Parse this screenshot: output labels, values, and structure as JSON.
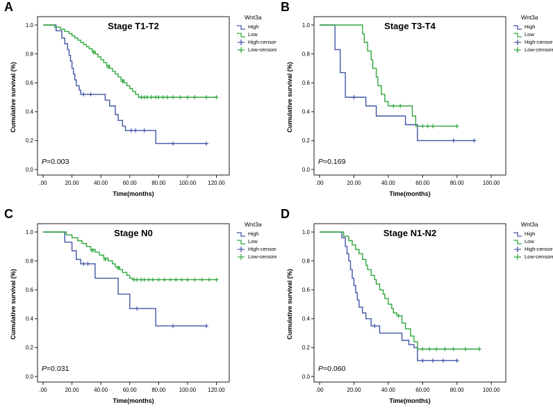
{
  "figure": {
    "colors": {
      "high": "#3E55A6",
      "low": "#2FA63A",
      "axis": "#1a1a1a",
      "background": "#ffffff"
    },
    "legend": {
      "title": "Wnt3a",
      "items": [
        {
          "key": "high",
          "label": "High",
          "color": "high",
          "glyph": "step"
        },
        {
          "key": "low",
          "label": "Low",
          "color": "low",
          "glyph": "step"
        },
        {
          "key": "high-censored",
          "label": "High-censored",
          "color": "high",
          "glyph": "plus"
        },
        {
          "key": "low-censored",
          "label": "Low-censored",
          "color": "low",
          "glyph": "plus"
        }
      ]
    }
  },
  "chart_data": [
    {
      "panel_label": "A",
      "type": "line",
      "title": "Stage T1-T2",
      "xlabel": "Time(months)",
      "ylabel": "Cumulative survival (%)",
      "p_label": "P",
      "p_text": "=0.003",
      "xlim": [
        0,
        126
      ],
      "ylim": [
        0,
        1.0
      ],
      "xticks": [
        0,
        20,
        40,
        60,
        80,
        100,
        120
      ],
      "xtick_labels": [
        ".00",
        "20.00",
        "40.00",
        "60.00",
        "80.00",
        "100.00",
        "120.00"
      ],
      "yticks": [
        0.0,
        0.2,
        0.4,
        0.6,
        0.8,
        1.0
      ],
      "ytick_labels": [
        "0.0",
        "0.2",
        "0.4",
        "0.6",
        "0.8",
        "1.0"
      ],
      "series": [
        {
          "name": "High",
          "color": "high",
          "steps": [
            [
              0,
              1.0
            ],
            [
              9,
              0.96
            ],
            [
              13,
              0.91
            ],
            [
              15,
              0.87
            ],
            [
              17,
              0.83
            ],
            [
              18,
              0.79
            ],
            [
              19,
              0.75
            ],
            [
              20,
              0.7
            ],
            [
              21,
              0.66
            ],
            [
              22,
              0.62
            ],
            [
              23,
              0.58
            ],
            [
              25,
              0.55
            ],
            [
              26,
              0.52
            ],
            [
              43,
              0.48
            ],
            [
              46,
              0.44
            ],
            [
              50,
              0.38
            ],
            [
              52,
              0.34
            ],
            [
              55,
              0.3
            ],
            [
              57,
              0.27
            ],
            [
              78,
              0.18
            ],
            [
              113,
              0.18
            ]
          ],
          "censors": [
            [
              28,
              0.52
            ],
            [
              33,
              0.52
            ],
            [
              61,
              0.27
            ],
            [
              64,
              0.27
            ],
            [
              70,
              0.27
            ],
            [
              90,
              0.18
            ],
            [
              113,
              0.18
            ]
          ]
        },
        {
          "name": "Low",
          "color": "low",
          "steps": [
            [
              0,
              1.0
            ],
            [
              8,
              0.985
            ],
            [
              12,
              0.97
            ],
            [
              15,
              0.955
            ],
            [
              18,
              0.94
            ],
            [
              20,
              0.925
            ],
            [
              22,
              0.91
            ],
            [
              24,
              0.895
            ],
            [
              26,
              0.88
            ],
            [
              28,
              0.865
            ],
            [
              30,
              0.85
            ],
            [
              32,
              0.835
            ],
            [
              34,
              0.82
            ],
            [
              36,
              0.8
            ],
            [
              38,
              0.78
            ],
            [
              40,
              0.76
            ],
            [
              42,
              0.74
            ],
            [
              44,
              0.72
            ],
            [
              46,
              0.7
            ],
            [
              48,
              0.68
            ],
            [
              50,
              0.66
            ],
            [
              52,
              0.64
            ],
            [
              54,
              0.62
            ],
            [
              56,
              0.6
            ],
            [
              58,
              0.58
            ],
            [
              60,
              0.56
            ],
            [
              62,
              0.54
            ],
            [
              64,
              0.52
            ],
            [
              66,
              0.5
            ],
            [
              120,
              0.5
            ]
          ],
          "censors": [
            [
              35,
              0.81
            ],
            [
              45,
              0.71
            ],
            [
              55,
              0.61
            ],
            [
              68,
              0.5
            ],
            [
              70,
              0.5
            ],
            [
              72,
              0.5
            ],
            [
              75,
              0.5
            ],
            [
              78,
              0.5
            ],
            [
              80,
              0.5
            ],
            [
              83,
              0.5
            ],
            [
              86,
              0.5
            ],
            [
              90,
              0.5
            ],
            [
              95,
              0.5
            ],
            [
              100,
              0.5
            ],
            [
              105,
              0.5
            ],
            [
              113,
              0.5
            ],
            [
              120,
              0.5
            ]
          ]
        }
      ]
    },
    {
      "panel_label": "B",
      "type": "line",
      "title": "Stage T3-T4",
      "xlabel": "Time(months)",
      "ylabel": "Cumulative survival (%)",
      "p_label": "P",
      "p_text": "=0.169",
      "xlim": [
        0,
        106
      ],
      "ylim": [
        0,
        1.0
      ],
      "xticks": [
        0,
        20,
        40,
        60,
        80,
        100
      ],
      "xtick_labels": [
        ".00",
        "20.00",
        "40.00",
        "60.00",
        "80.00",
        "100.00"
      ],
      "yticks": [
        0.0,
        0.2,
        0.4,
        0.6,
        0.8,
        1.0
      ],
      "ytick_labels": [
        "0.0",
        "0.2",
        "0.4",
        "0.6",
        "0.8",
        "1.0"
      ],
      "series": [
        {
          "name": "High",
          "color": "high",
          "steps": [
            [
              0,
              1.0
            ],
            [
              9,
              0.83
            ],
            [
              12,
              0.67
            ],
            [
              15,
              0.5
            ],
            [
              27,
              0.44
            ],
            [
              33,
              0.37
            ],
            [
              50,
              0.31
            ],
            [
              57,
              0.2
            ],
            [
              90,
              0.2
            ]
          ],
          "censors": [
            [
              20,
              0.5
            ],
            [
              78,
              0.2
            ],
            [
              90,
              0.2
            ]
          ]
        },
        {
          "name": "Low",
          "color": "low",
          "steps": [
            [
              0,
              1.0
            ],
            [
              25,
              0.94
            ],
            [
              26,
              0.88
            ],
            [
              28,
              0.82
            ],
            [
              30,
              0.76
            ],
            [
              31,
              0.7
            ],
            [
              33,
              0.64
            ],
            [
              34,
              0.58
            ],
            [
              36,
              0.52
            ],
            [
              38,
              0.47
            ],
            [
              40,
              0.44
            ],
            [
              54,
              0.37
            ],
            [
              56,
              0.3
            ],
            [
              80,
              0.3
            ]
          ],
          "censors": [
            [
              43,
              0.44
            ],
            [
              47,
              0.44
            ],
            [
              60,
              0.3
            ],
            [
              63,
              0.3
            ],
            [
              66,
              0.3
            ],
            [
              80,
              0.3
            ]
          ]
        }
      ]
    },
    {
      "panel_label": "C",
      "type": "line",
      "title": "Stage N0",
      "xlabel": "Time(months)",
      "ylabel": "Cumulative survival (%)",
      "p_label": "P",
      "p_text": "=0.031",
      "xlim": [
        0,
        126
      ],
      "ylim": [
        0,
        1.0
      ],
      "xticks": [
        0,
        20,
        40,
        60,
        80,
        100,
        120
      ],
      "xtick_labels": [
        ".00",
        "20.00",
        "40.00",
        "60.00",
        "80.00",
        "100.00",
        "120.00"
      ],
      "yticks": [
        0.0,
        0.2,
        0.4,
        0.6,
        0.8,
        1.0
      ],
      "ytick_labels": [
        "0.0",
        "0.2",
        "0.4",
        "0.6",
        "0.8",
        "1.0"
      ],
      "series": [
        {
          "name": "High",
          "color": "high",
          "steps": [
            [
              0,
              1.0
            ],
            [
              15,
              0.93
            ],
            [
              20,
              0.87
            ],
            [
              23,
              0.81
            ],
            [
              26,
              0.78
            ],
            [
              36,
              0.68
            ],
            [
              52,
              0.57
            ],
            [
              60,
              0.47
            ],
            [
              78,
              0.35
            ],
            [
              113,
              0.35
            ]
          ],
          "censors": [
            [
              28,
              0.78
            ],
            [
              31,
              0.78
            ],
            [
              65,
              0.47
            ],
            [
              90,
              0.35
            ],
            [
              113,
              0.35
            ]
          ]
        },
        {
          "name": "Low",
          "color": "low",
          "steps": [
            [
              0,
              1.0
            ],
            [
              16,
              0.98
            ],
            [
              20,
              0.96
            ],
            [
              24,
              0.94
            ],
            [
              27,
              0.92
            ],
            [
              30,
              0.9
            ],
            [
              33,
              0.88
            ],
            [
              36,
              0.86
            ],
            [
              39,
              0.84
            ],
            [
              42,
              0.82
            ],
            [
              45,
              0.8
            ],
            [
              48,
              0.78
            ],
            [
              50,
              0.76
            ],
            [
              53,
              0.74
            ],
            [
              55,
              0.72
            ],
            [
              58,
              0.7
            ],
            [
              60,
              0.68
            ],
            [
              62,
              0.67
            ],
            [
              120,
              0.67
            ]
          ],
          "censors": [
            [
              34,
              0.87
            ],
            [
              43,
              0.81
            ],
            [
              52,
              0.75
            ],
            [
              63,
              0.67
            ],
            [
              65,
              0.67
            ],
            [
              68,
              0.67
            ],
            [
              70,
              0.67
            ],
            [
              73,
              0.67
            ],
            [
              76,
              0.67
            ],
            [
              80,
              0.67
            ],
            [
              84,
              0.67
            ],
            [
              88,
              0.67
            ],
            [
              92,
              0.67
            ],
            [
              96,
              0.67
            ],
            [
              100,
              0.67
            ],
            [
              105,
              0.67
            ],
            [
              110,
              0.67
            ],
            [
              115,
              0.67
            ],
            [
              120,
              0.67
            ]
          ]
        }
      ]
    },
    {
      "panel_label": "D",
      "type": "line",
      "title": "Stage N1-N2",
      "xlabel": "Time(months)",
      "ylabel": "Cumulative survival (%)",
      "p_label": "P",
      "p_text": "=0.060",
      "xlim": [
        0,
        106
      ],
      "ylim": [
        0,
        1.0
      ],
      "xticks": [
        0,
        20,
        40,
        60,
        80,
        100
      ],
      "xtick_labels": [
        ".00",
        "20.00",
        "40.00",
        "60.00",
        "80.00",
        "100.00"
      ],
      "yticks": [
        0.0,
        0.2,
        0.4,
        0.6,
        0.8,
        1.0
      ],
      "ytick_labels": [
        "0.0",
        "0.2",
        "0.4",
        "0.6",
        "0.8",
        "1.0"
      ],
      "series": [
        {
          "name": "High",
          "color": "high",
          "steps": [
            [
              0,
              1.0
            ],
            [
              13,
              0.96
            ],
            [
              15,
              0.9
            ],
            [
              16,
              0.85
            ],
            [
              17,
              0.8
            ],
            [
              18,
              0.74
            ],
            [
              19,
              0.68
            ],
            [
              20,
              0.63
            ],
            [
              21,
              0.58
            ],
            [
              22,
              0.53
            ],
            [
              23,
              0.48
            ],
            [
              25,
              0.44
            ],
            [
              27,
              0.4
            ],
            [
              30,
              0.35
            ],
            [
              35,
              0.3
            ],
            [
              48,
              0.25
            ],
            [
              52,
              0.22
            ],
            [
              55,
              0.2
            ],
            [
              57,
              0.11
            ],
            [
              80,
              0.11
            ]
          ],
          "censors": [
            [
              32,
              0.35
            ],
            [
              60,
              0.11
            ],
            [
              66,
              0.11
            ],
            [
              72,
              0.11
            ],
            [
              80,
              0.11
            ]
          ]
        },
        {
          "name": "Low",
          "color": "low",
          "steps": [
            [
              0,
              1.0
            ],
            [
              14,
              0.97
            ],
            [
              17,
              0.94
            ],
            [
              19,
              0.91
            ],
            [
              21,
              0.88
            ],
            [
              23,
              0.85
            ],
            [
              25,
              0.81
            ],
            [
              27,
              0.77
            ],
            [
              28,
              0.74
            ],
            [
              30,
              0.7
            ],
            [
              32,
              0.67
            ],
            [
              33,
              0.64
            ],
            [
              35,
              0.6
            ],
            [
              37,
              0.57
            ],
            [
              38,
              0.54
            ],
            [
              40,
              0.5
            ],
            [
              42,
              0.47
            ],
            [
              43,
              0.44
            ],
            [
              45,
              0.42
            ],
            [
              48,
              0.37
            ],
            [
              50,
              0.33
            ],
            [
              53,
              0.28
            ],
            [
              55,
              0.24
            ],
            [
              57,
              0.19
            ],
            [
              93,
              0.19
            ]
          ],
          "censors": [
            [
              46,
              0.42
            ],
            [
              60,
              0.19
            ],
            [
              64,
              0.19
            ],
            [
              68,
              0.19
            ],
            [
              73,
              0.19
            ],
            [
              78,
              0.19
            ],
            [
              85,
              0.19
            ],
            [
              93,
              0.19
            ]
          ]
        }
      ]
    }
  ]
}
